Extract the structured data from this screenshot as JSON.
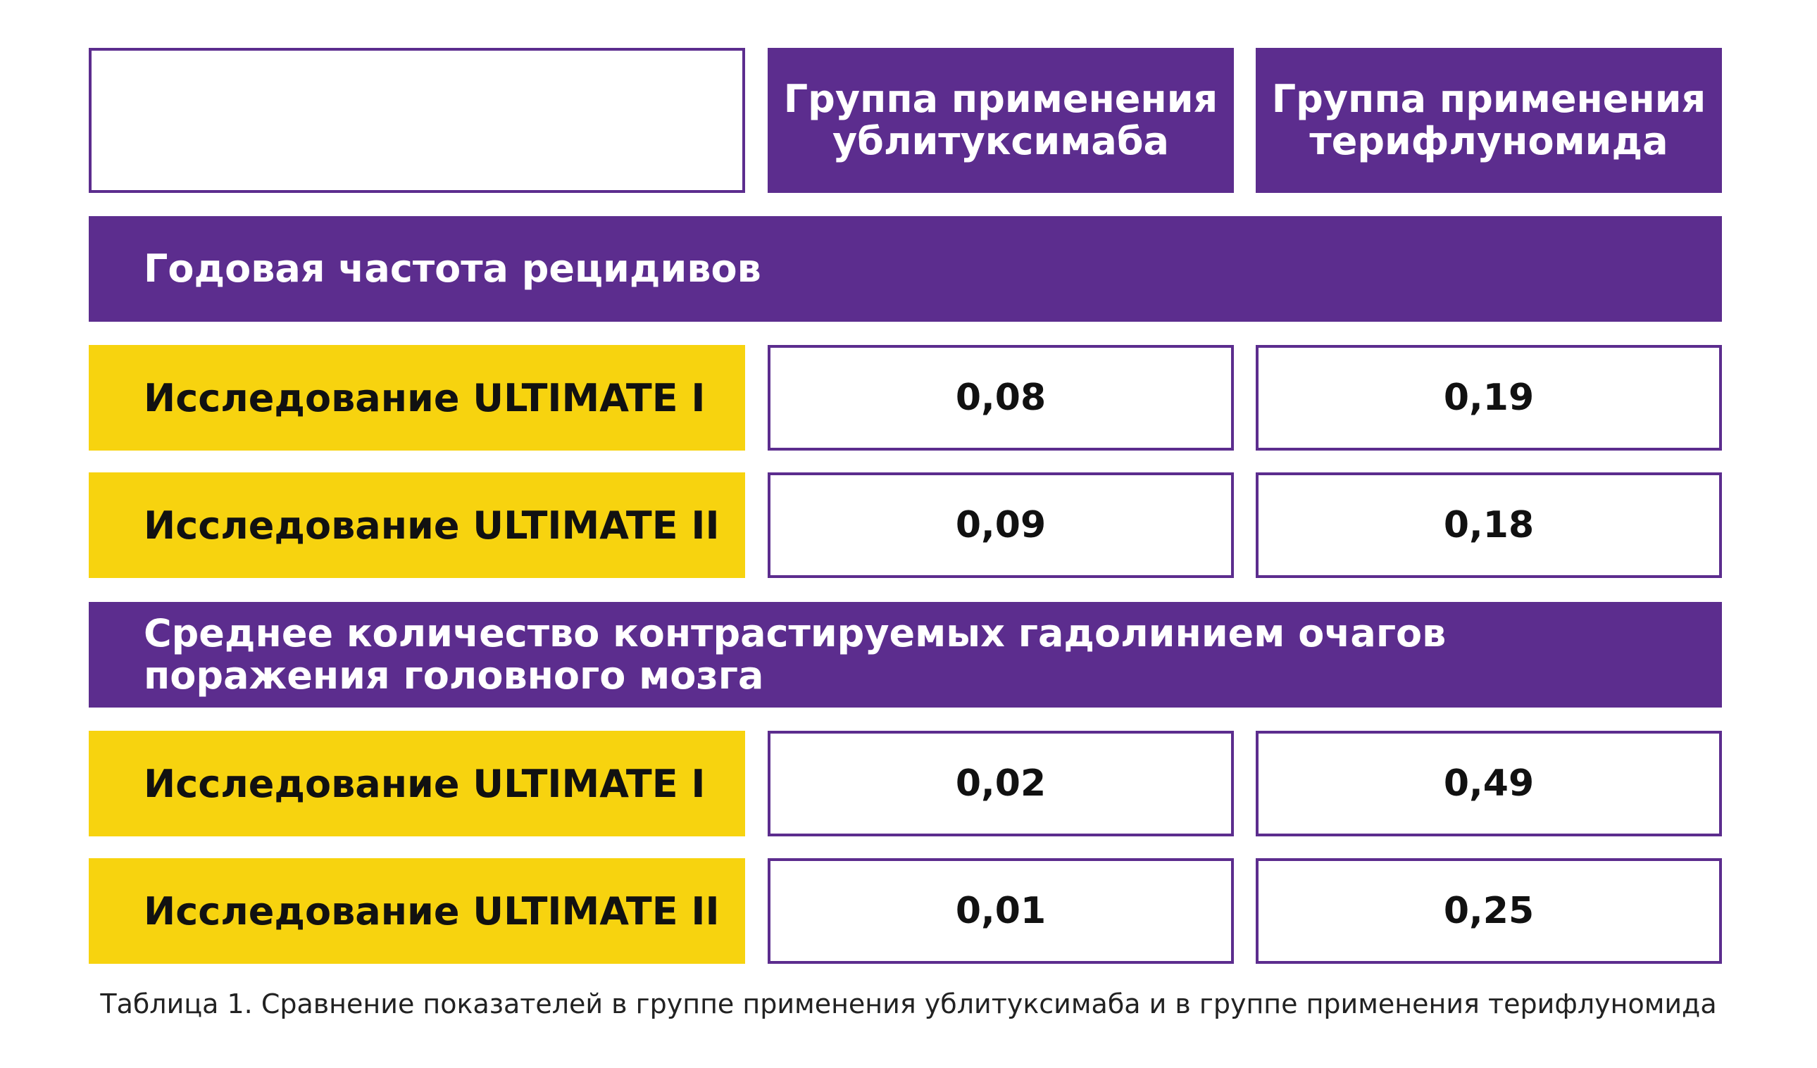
{
  "table": {
    "column_headers": [
      "Группа применения\nублитуксимаба",
      "Группа применения\nтерифлуномида"
    ],
    "sections": [
      {
        "title": "Годовая частота рецидивов",
        "rows": [
          {
            "label": "Исследование ULTIMATE I",
            "values": [
              "0,08",
              "0,19"
            ]
          },
          {
            "label": "Исследование ULTIMATE II",
            "values": [
              "0,09",
              "0,18"
            ]
          }
        ]
      },
      {
        "title": "Среднее количество контрастируемых гадолинием очагов поражения головного мозга",
        "rows": [
          {
            "label": "Исследование ULTIMATE I",
            "values": [
              "0,02",
              "0,49"
            ]
          },
          {
            "label": "Исследование ULTIMATE II",
            "values": [
              "0,01",
              "0,25"
            ]
          }
        ]
      }
    ]
  },
  "caption": "Таблица 1. Сравнение показателей в группе применения ублитуксимаба и в группе применения терифлуномида",
  "colors": {
    "purple": "#5c2d8e",
    "yellow": "#f7d30f",
    "white": "#ffffff"
  }
}
